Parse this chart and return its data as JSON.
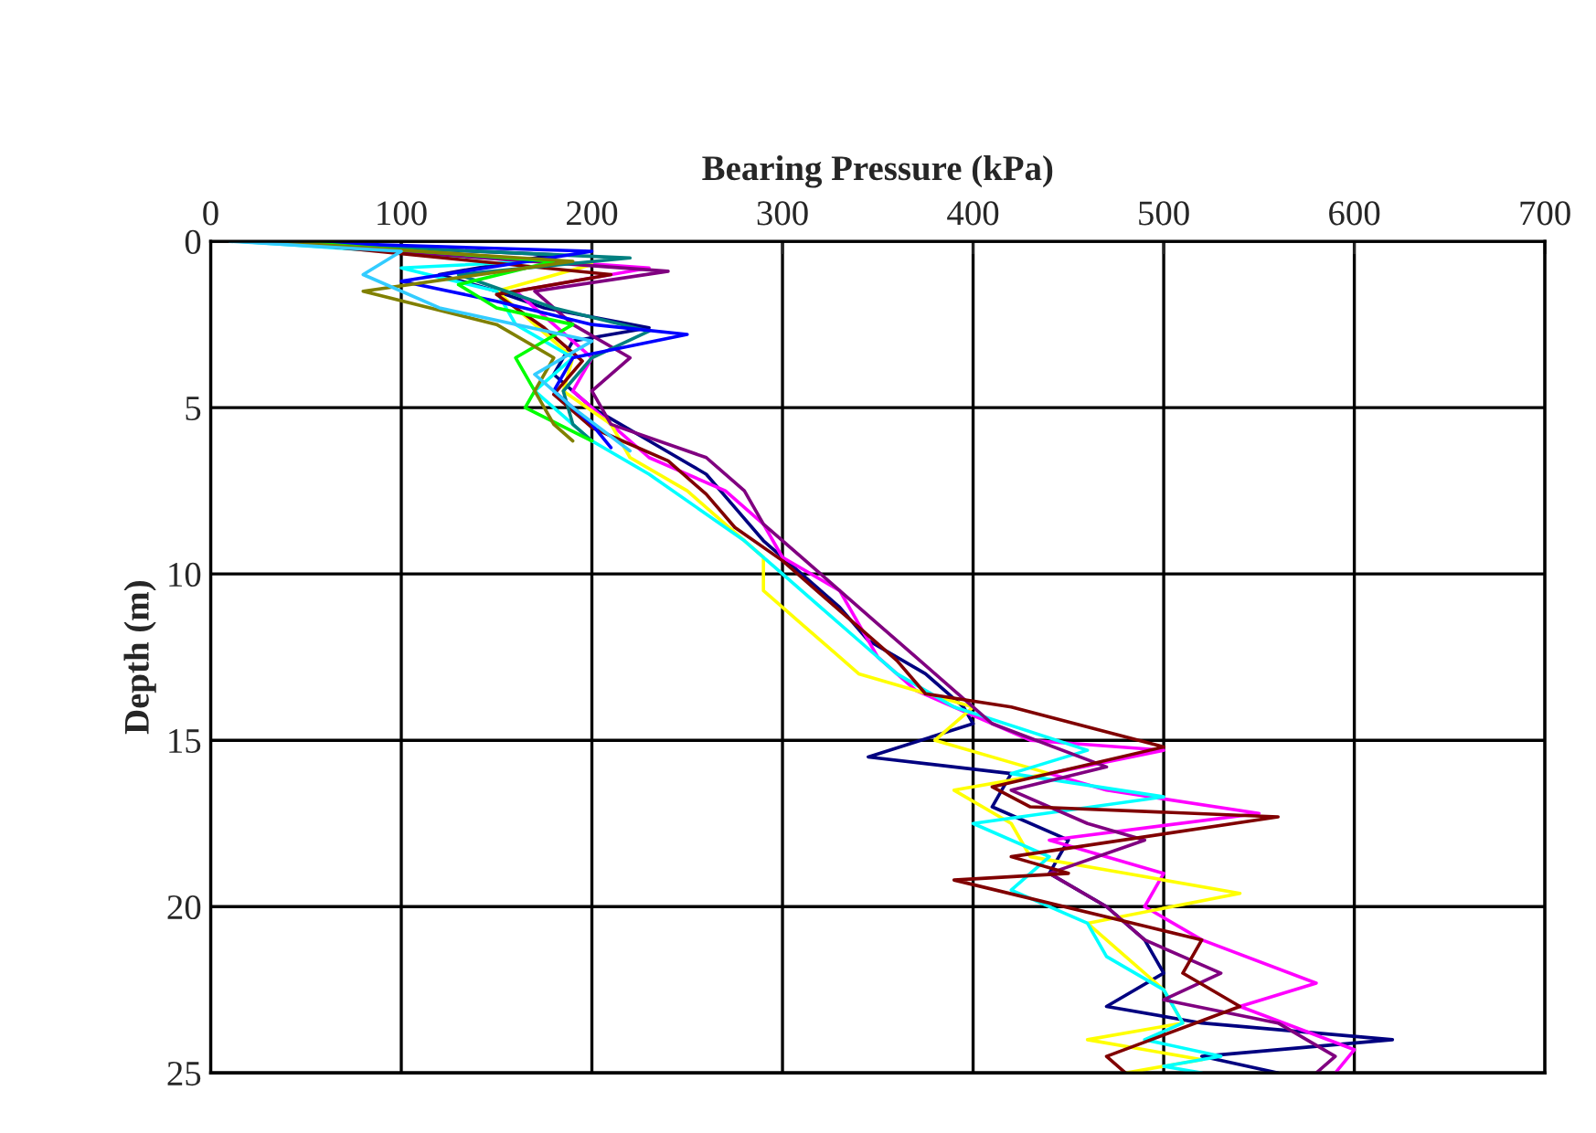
{
  "chart_data": {
    "type": "line",
    "xlabel": "Bearing Pressure (kPa)",
    "ylabel": "Depth (m)",
    "xlim": [
      0,
      700
    ],
    "xticks": [
      0,
      100,
      200,
      300,
      400,
      500,
      600,
      700
    ],
    "ylim": [
      25,
      0
    ],
    "yticks": [
      0,
      5,
      10,
      15,
      20,
      25
    ],
    "grid": true,
    "marker": "none",
    "line_style": "solid",
    "series": [
      {
        "color": "#000080",
        "x": [
          20,
          180,
          120,
          150,
          175,
          230,
          190,
          180,
          200,
          230,
          260,
          275,
          290,
          310,
          330,
          345,
          375,
          395,
          400,
          345,
          420,
          410,
          450,
          440,
          470,
          490,
          500,
          470,
          520,
          620,
          520,
          560
        ],
        "values": [
          0,
          0.4,
          1,
          1.5,
          2,
          2.6,
          3,
          4,
          5,
          6,
          7,
          8,
          9,
          10,
          11,
          12,
          13,
          14,
          14.5,
          15.5,
          16,
          17,
          18,
          19,
          20,
          21,
          22,
          23,
          23.5,
          24,
          24.5,
          25
        ]
      },
      {
        "color": "#ff00ff",
        "x": [
          30,
          230,
          160,
          180,
          200,
          190,
          210,
          230,
          270,
          290,
          300,
          330,
          340,
          350,
          370,
          410,
          430,
          500,
          440,
          470,
          550,
          440,
          500,
          490,
          520,
          580,
          540,
          600,
          590
        ],
        "values": [
          0,
          0.8,
          1.5,
          2.5,
          3.5,
          4.5,
          5.5,
          6.5,
          7.5,
          8.5,
          9.5,
          10.5,
          11.5,
          12.5,
          13.5,
          14.5,
          15,
          15.3,
          16,
          16.5,
          17.2,
          18,
          19,
          20,
          21,
          22.3,
          23,
          24.3,
          25
        ]
      },
      {
        "color": "#ffff00",
        "x": [
          40,
          200,
          150,
          170,
          190,
          185,
          210,
          220,
          250,
          270,
          290,
          290,
          310,
          330,
          340,
          400,
          380,
          440,
          390,
          420,
          430,
          480,
          540,
          460,
          480,
          500,
          510,
          460,
          520,
          480
        ],
        "values": [
          0,
          0.7,
          1.5,
          2.5,
          3.5,
          4.5,
          5.5,
          6.5,
          7.5,
          8.5,
          9.5,
          10.5,
          11.5,
          12.5,
          13,
          14,
          15,
          16,
          16.5,
          17.5,
          18.5,
          19,
          19.6,
          20.5,
          21.5,
          22.5,
          23.5,
          24,
          24.6,
          25
        ]
      },
      {
        "color": "#00ffff",
        "x": [
          15,
          170,
          100,
          150,
          160,
          190,
          170,
          200,
          230,
          255,
          280,
          300,
          320,
          340,
          360,
          390,
          460,
          420,
          500,
          400,
          440,
          420,
          460,
          470,
          500,
          510,
          490,
          530,
          500,
          520
        ],
        "values": [
          0,
          0.6,
          0.8,
          1.5,
          2.5,
          3.5,
          4.5,
          6,
          7,
          8,
          9,
          10,
          11,
          12,
          13,
          14,
          15.3,
          16,
          16.7,
          17.5,
          18.5,
          19.5,
          20.5,
          21.5,
          22.5,
          23.5,
          24,
          24.5,
          24.8,
          25
        ]
      },
      {
        "color": "#800080",
        "x": [
          25,
          240,
          170,
          190,
          220,
          200,
          210,
          260,
          280,
          290,
          310,
          330,
          350,
          370,
          390,
          410,
          470,
          420,
          460,
          490,
          440,
          470,
          490,
          530,
          500,
          560,
          590,
          580
        ],
        "values": [
          0,
          0.9,
          1.5,
          2.5,
          3.5,
          4.5,
          5.5,
          6.5,
          7.5,
          8.5,
          9.5,
          10.5,
          11.5,
          12.5,
          13.5,
          14.5,
          15.8,
          16.5,
          17.5,
          18,
          19,
          20,
          21,
          22,
          22.8,
          23.5,
          24.5,
          25
        ]
      },
      {
        "color": "#800000",
        "x": [
          35,
          210,
          150,
          175,
          195,
          180,
          200,
          240,
          260,
          275,
          300,
          320,
          340,
          360,
          375,
          420,
          500,
          410,
          430,
          560,
          420,
          450,
          390,
          520,
          510,
          540,
          470,
          480
        ],
        "values": [
          0,
          1,
          1.6,
          2.6,
          3.6,
          4.6,
          5.6,
          6.6,
          7.6,
          8.6,
          9.6,
          10.6,
          11.6,
          12.6,
          13.6,
          14,
          15.2,
          16.4,
          17,
          17.3,
          18.5,
          19,
          19.2,
          21,
          22,
          23,
          24.5,
          25
        ]
      },
      {
        "color": "#008080",
        "x": [
          20,
          220,
          130,
          180,
          230,
          200,
          185,
          190,
          200
        ],
        "values": [
          0,
          0.5,
          1,
          2,
          2.7,
          3.5,
          4.5,
          5.5,
          6
        ]
      },
      {
        "color": "#0000ff",
        "x": [
          30,
          200,
          100,
          150,
          200,
          250,
          190,
          180,
          200,
          210
        ],
        "values": [
          0,
          0.3,
          1.2,
          1.8,
          2.5,
          2.8,
          3.5,
          4.5,
          5.5,
          6.2
        ]
      },
      {
        "color": "#00ff00",
        "x": [
          40,
          180,
          130,
          150,
          190,
          160,
          170,
          165,
          200
        ],
        "values": [
          0,
          0.6,
          1.3,
          2,
          2.5,
          3.5,
          4.5,
          5,
          6
        ]
      },
      {
        "color": "#808000",
        "x": [
          30,
          190,
          80,
          150,
          180,
          170,
          180,
          190
        ],
        "values": [
          0,
          0.6,
          1.5,
          2.5,
          3.5,
          4.5,
          5.5,
          6
        ]
      },
      {
        "color": "#33ccff",
        "x": [
          10,
          100,
          80,
          120,
          200,
          170,
          190,
          220
        ],
        "values": [
          0,
          0.3,
          1,
          2,
          3,
          4,
          5,
          6.3
        ]
      }
    ]
  }
}
